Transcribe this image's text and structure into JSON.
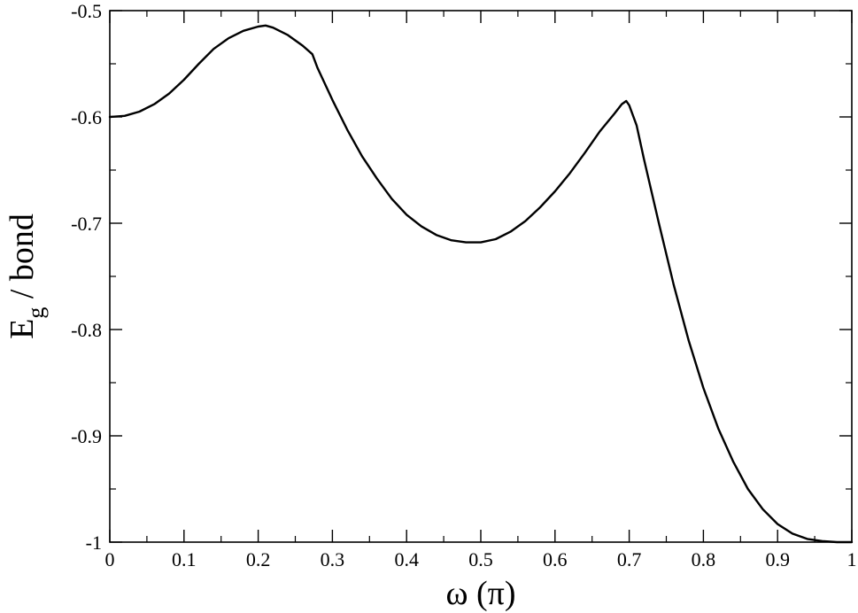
{
  "chart_data": {
    "type": "line",
    "title": "",
    "xlabel": "ω (π)",
    "ylabel": {
      "main": "E",
      "subscript": "g",
      "rest": " / bond"
    },
    "xlim": [
      0,
      1
    ],
    "ylim": [
      -1,
      -0.5
    ],
    "x_ticks": [
      0,
      0.1,
      0.2,
      0.3,
      0.4,
      0.5,
      0.6,
      0.7,
      0.8,
      0.9,
      1
    ],
    "x_tick_labels": [
      "0",
      "0.1",
      "0.2",
      "0.3",
      "0.4",
      "0.5",
      "0.6",
      "0.7",
      "0.8",
      "0.9",
      "1"
    ],
    "x_minor_ticks": [
      0.05,
      0.15,
      0.25,
      0.35,
      0.45,
      0.55,
      0.65,
      0.75,
      0.85,
      0.95
    ],
    "y_ticks": [
      -1,
      -0.9,
      -0.8,
      -0.7,
      -0.6,
      -0.5
    ],
    "y_tick_labels": [
      "-1",
      "-0.9",
      "-0.8",
      "-0.7",
      "-0.6",
      "-0.5"
    ],
    "y_minor_ticks": [
      -0.95,
      -0.85,
      -0.75,
      -0.65,
      -0.55
    ],
    "grid": false,
    "line_color": "#000000",
    "series": [
      {
        "x": [
          0,
          0.02,
          0.04,
          0.06,
          0.08,
          0.1,
          0.12,
          0.14,
          0.15,
          0.16,
          0.18,
          0.2,
          0.21,
          0.22,
          0.24,
          0.26,
          0.273,
          0.28,
          0.3,
          0.32,
          0.34,
          0.36,
          0.38,
          0.4,
          0.42,
          0.44,
          0.46,
          0.48,
          0.5,
          0.52,
          0.54,
          0.56,
          0.58,
          0.6,
          0.62,
          0.64,
          0.66,
          0.68,
          0.69,
          0.696,
          0.7,
          0.71,
          0.72,
          0.74,
          0.76,
          0.78,
          0.8,
          0.82,
          0.84,
          0.86,
          0.88,
          0.9,
          0.92,
          0.94,
          0.96,
          0.98,
          1.0
        ],
        "y": [
          -0.6,
          -0.599,
          -0.595,
          -0.588,
          -0.578,
          -0.565,
          -0.55,
          -0.536,
          -0.531,
          -0.526,
          -0.519,
          -0.515,
          -0.514,
          -0.516,
          -0.523,
          -0.533,
          -0.541,
          -0.554,
          -0.584,
          -0.612,
          -0.637,
          -0.658,
          -0.677,
          -0.692,
          -0.703,
          -0.711,
          -0.716,
          -0.718,
          -0.718,
          -0.715,
          -0.708,
          -0.698,
          -0.685,
          -0.67,
          -0.653,
          -0.634,
          -0.614,
          -0.597,
          -0.588,
          -0.585,
          -0.589,
          -0.608,
          -0.64,
          -0.7,
          -0.758,
          -0.81,
          -0.855,
          -0.893,
          -0.924,
          -0.95,
          -0.969,
          -0.983,
          -0.992,
          -0.997,
          -0.999,
          -1.0,
          -1.0
        ]
      }
    ]
  }
}
